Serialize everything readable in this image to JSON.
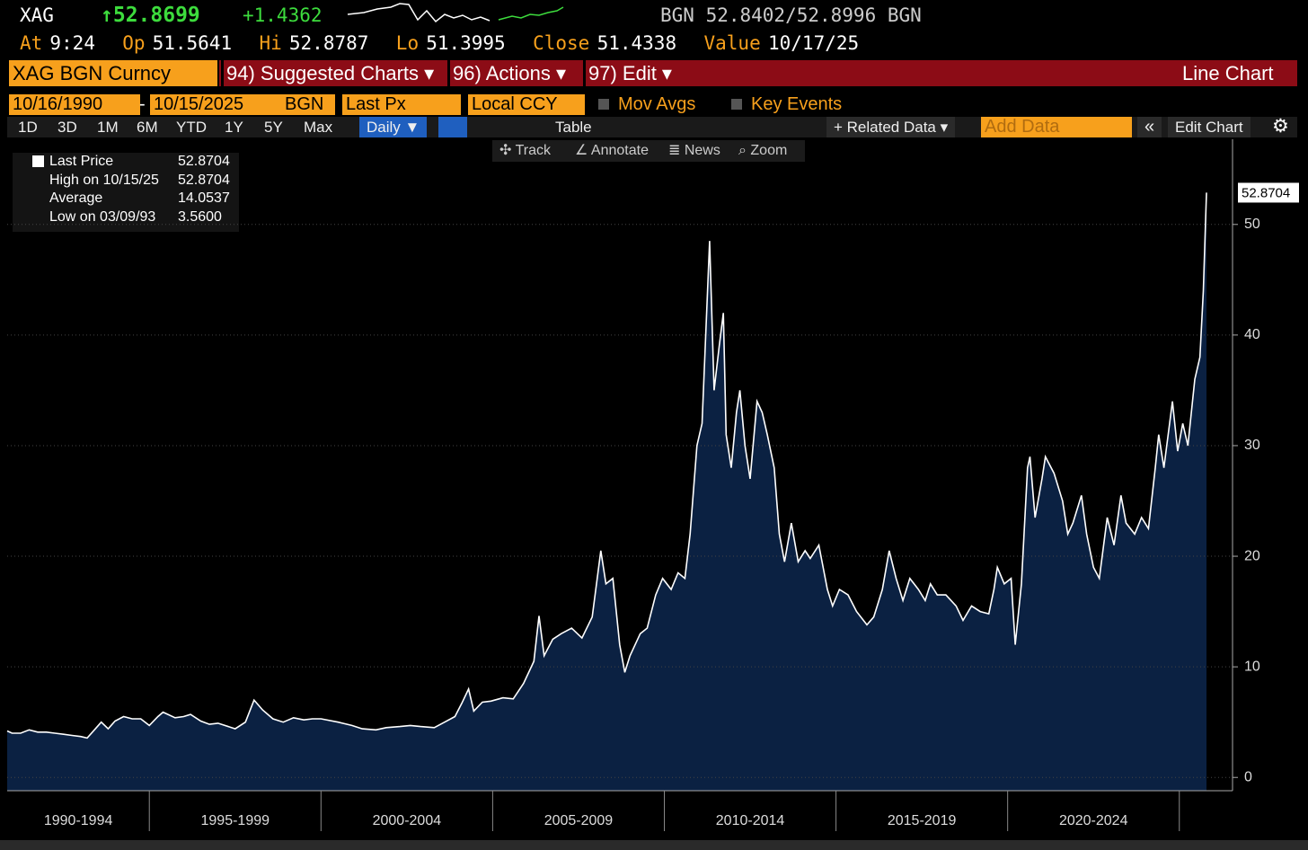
{
  "quote": {
    "ticker": "XAG",
    "price": "↑52.8699",
    "change": "+1.4362",
    "bid_ask": "BGN 52.8402/52.8996 BGN",
    "fields": [
      {
        "label": "At",
        "value": "9:24"
      },
      {
        "label": "Op",
        "value": "51.5641"
      },
      {
        "label": "Hi",
        "value": "52.8787"
      },
      {
        "label": "Lo",
        "value": "51.3995"
      },
      {
        "label": "Close",
        "value": "51.4338"
      },
      {
        "label": "Value",
        "value": "10/17/25"
      }
    ]
  },
  "menu": {
    "security": "XAG BGN Curncy",
    "items": [
      "94) Suggested Charts ▾",
      "96) Actions ▾",
      "97) Edit ▾"
    ],
    "view": "Line Chart"
  },
  "settings": {
    "start": "10/16/1990",
    "separator": "-",
    "end": "10/15/2025",
    "source": "BGN",
    "field": "Last Px",
    "currency": "Local CCY",
    "options": [
      "Mov Avgs",
      "Key Events"
    ]
  },
  "toolbar": {
    "periods": [
      "1D",
      "3D",
      "1M",
      "6M",
      "YTD",
      "1Y",
      "5Y",
      "Max"
    ],
    "frequency": "Daily ▼",
    "table": "Table",
    "related": "+ Related Data ▾",
    "add_data": "Add Data",
    "collapse": "«",
    "edit": "Edit Chart",
    "settings": "⚙"
  },
  "tools": [
    "✣ Track",
    "∠ Annotate",
    "≣ News",
    "⌕ Zoom"
  ],
  "chart_data": {
    "type": "area",
    "legend_stats": [
      {
        "label": "Last Price",
        "value": "52.8704"
      },
      {
        "label": "High on 10/15/25",
        "value": "52.8704"
      },
      {
        "label": "Average",
        "value": "14.0537"
      },
      {
        "label": "Low on 03/09/93",
        "value": "3.5600"
      }
    ],
    "last_price_tag": "52.8704",
    "xlim": [
      1990.86,
      2026.55
    ],
    "ylim": [
      -1.2,
      57.7
    ],
    "yticks": [
      0,
      10,
      20,
      30,
      40,
      50
    ],
    "xticks": [
      1990,
      1995,
      2000,
      2005,
      2010,
      2015,
      2020,
      2025
    ],
    "period_labels": [
      "1990-1994",
      "1995-1999",
      "2000-2004",
      "2005-2009",
      "2010-2014",
      "2015-2019",
      "2020-2024"
    ],
    "grid": true,
    "fill_color": "#0b2142",
    "x": [
      1990.86,
      1991.0,
      1991.25,
      1991.5,
      1991.75,
      1992.0,
      1992.25,
      1992.5,
      1992.75,
      1993.0,
      1993.19,
      1993.4,
      1993.6,
      1993.8,
      1994.0,
      1994.25,
      1994.5,
      1994.75,
      1995.0,
      1995.25,
      1995.4,
      1995.75,
      1996.0,
      1996.2,
      1996.5,
      1996.75,
      1997.0,
      1997.5,
      1997.8,
      1998.05,
      1998.3,
      1998.6,
      1998.9,
      1999.2,
      1999.5,
      1999.75,
      2000.0,
      2000.5,
      2000.9,
      2001.2,
      2001.6,
      2001.9,
      2002.3,
      2002.6,
      2002.9,
      2003.3,
      2003.6,
      2003.9,
      2004.1,
      2004.3,
      2004.45,
      2004.7,
      2004.95,
      2005.3,
      2005.6,
      2005.9,
      2006.2,
      2006.35,
      2006.5,
      2006.75,
      2007.0,
      2007.3,
      2007.6,
      2007.9,
      2008.15,
      2008.3,
      2008.5,
      2008.7,
      2008.85,
      2009.0,
      2009.3,
      2009.5,
      2009.75,
      2009.95,
      2010.2,
      2010.4,
      2010.6,
      2010.75,
      2010.95,
      2011.1,
      2011.32,
      2011.45,
      2011.6,
      2011.72,
      2011.8,
      2011.95,
      2012.1,
      2012.2,
      2012.35,
      2012.5,
      2012.7,
      2012.85,
      2013.0,
      2013.2,
      2013.35,
      2013.5,
      2013.7,
      2013.9,
      2014.1,
      2014.25,
      2014.5,
      2014.75,
      2014.9,
      2015.1,
      2015.35,
      2015.6,
      2015.9,
      2016.1,
      2016.35,
      2016.55,
      2016.75,
      2016.95,
      2017.15,
      2017.4,
      2017.6,
      2017.75,
      2017.95,
      2018.2,
      2018.5,
      2018.7,
      2018.95,
      2019.2,
      2019.45,
      2019.6,
      2019.7,
      2019.9,
      2020.1,
      2020.22,
      2020.4,
      2020.58,
      2020.65,
      2020.8,
      2021.0,
      2021.1,
      2021.35,
      2021.6,
      2021.75,
      2021.9,
      2022.15,
      2022.3,
      2022.5,
      2022.67,
      2022.9,
      2023.1,
      2023.3,
      2023.45,
      2023.7,
      2023.9,
      2024.1,
      2024.3,
      2024.4,
      2024.55,
      2024.8,
      2024.95,
      2025.1,
      2025.25,
      2025.45,
      2025.6,
      2025.7,
      2025.79
    ],
    "series": [
      {
        "name": "Last Price",
        "color": "#ffffff",
        "values": [
          4.2,
          4.0,
          4.0,
          4.3,
          4.1,
          4.1,
          4.0,
          3.9,
          3.8,
          3.7,
          3.56,
          4.3,
          5.0,
          4.4,
          5.1,
          5.5,
          5.3,
          5.3,
          4.7,
          5.5,
          5.9,
          5.4,
          5.5,
          5.7,
          5.1,
          4.8,
          4.9,
          4.4,
          5.0,
          7.0,
          6.1,
          5.3,
          5.0,
          5.4,
          5.2,
          5.3,
          5.3,
          5.0,
          4.7,
          4.4,
          4.3,
          4.5,
          4.6,
          4.7,
          4.6,
          4.5,
          5.0,
          5.5,
          6.7,
          8.0,
          6.0,
          6.8,
          6.9,
          7.2,
          7.1,
          8.5,
          10.5,
          14.6,
          11.0,
          12.5,
          13.0,
          13.5,
          12.6,
          14.5,
          20.5,
          17.5,
          18.0,
          12.0,
          9.5,
          11.0,
          13.0,
          13.5,
          16.5,
          18.0,
          17.0,
          18.5,
          18.0,
          22.0,
          30.0,
          32.0,
          48.5,
          35.0,
          39.0,
          42.0,
          31.0,
          28.0,
          33.0,
          35.0,
          30.0,
          27.0,
          34.0,
          33.0,
          31.0,
          28.0,
          22.0,
          19.5,
          23.0,
          19.5,
          20.5,
          19.8,
          21.0,
          17.0,
          15.5,
          17.0,
          16.5,
          15.0,
          13.8,
          14.5,
          17.0,
          20.5,
          18.0,
          16.0,
          18.0,
          17.0,
          16.0,
          17.5,
          16.5,
          16.5,
          15.5,
          14.2,
          15.5,
          15.0,
          14.8,
          17.0,
          19.0,
          17.5,
          18.0,
          12.0,
          17.5,
          28.0,
          29.0,
          23.5,
          27.0,
          29.0,
          27.5,
          25.0,
          22.0,
          23.0,
          25.5,
          22.0,
          19.0,
          18.0,
          23.5,
          21.0,
          25.5,
          23.0,
          22.0,
          23.5,
          22.5,
          28.0,
          31.0,
          28.0,
          34.0,
          29.5,
          32.0,
          30.0,
          36.0,
          38.0,
          44.0,
          52.8704
        ]
      }
    ]
  }
}
